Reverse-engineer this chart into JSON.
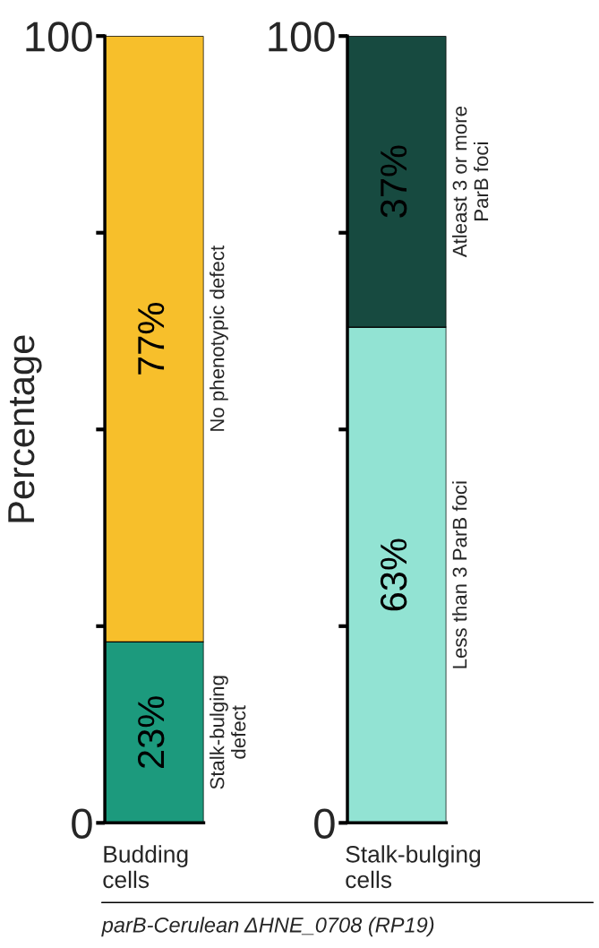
{
  "chart_data": [
    {
      "type": "bar",
      "stacked": true,
      "ylabel": "Percentage",
      "categories": [
        "Budding\ncells"
      ],
      "ylim": [
        0,
        100
      ],
      "yticks": [
        0,
        {
          "value": 25,
          "label": null
        },
        {
          "value": 50,
          "label": null
        },
        {
          "value": 75,
          "label": null
        },
        100
      ],
      "series": [
        {
          "name": "Stalk-bulging\ndefect",
          "color": "#1c9a7d",
          "values": [
            23
          ],
          "value_labels": [
            "23%"
          ]
        },
        {
          "name": "No phenotypic defect",
          "color": "#f7bf2b",
          "values": [
            77
          ],
          "value_labels": [
            "77%"
          ]
        }
      ]
    },
    {
      "type": "bar",
      "stacked": true,
      "categories": [
        "Stalk-bulging\ncells"
      ],
      "ylim": [
        0,
        100
      ],
      "yticks": [
        0,
        {
          "value": 25,
          "label": null
        },
        {
          "value": 50,
          "label": null
        },
        {
          "value": 75,
          "label": null
        },
        100
      ],
      "annotations": [
        "parB-Cerulean ΔHNE_0708 (RP19)"
      ],
      "series": [
        {
          "name": "Less than 3 ParB foci",
          "color": "#92e3d3",
          "values": [
            63
          ],
          "value_labels": [
            "63%"
          ]
        },
        {
          "name": "Atleast 3 or more\nParB foci",
          "color": "#174a40",
          "values": [
            37
          ],
          "value_labels": [
            "37%"
          ]
        }
      ]
    }
  ]
}
